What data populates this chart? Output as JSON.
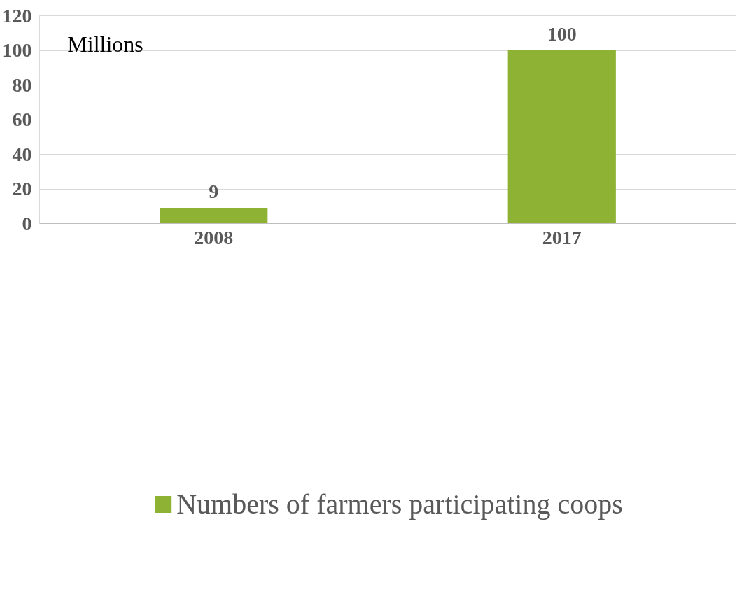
{
  "chart_data": {
    "type": "bar",
    "ylabel": "Millions",
    "categories": [
      "2008",
      "2017"
    ],
    "series": [
      {
        "name": "Numbers of farmers participating coops",
        "color": "#8db234",
        "values": [
          9,
          100
        ]
      }
    ],
    "ylim": [
      0,
      120
    ],
    "yticks": [
      0,
      20,
      40,
      60,
      80,
      100,
      120
    ],
    "grid": "y",
    "legend": "bottom",
    "data_labels": true
  }
}
